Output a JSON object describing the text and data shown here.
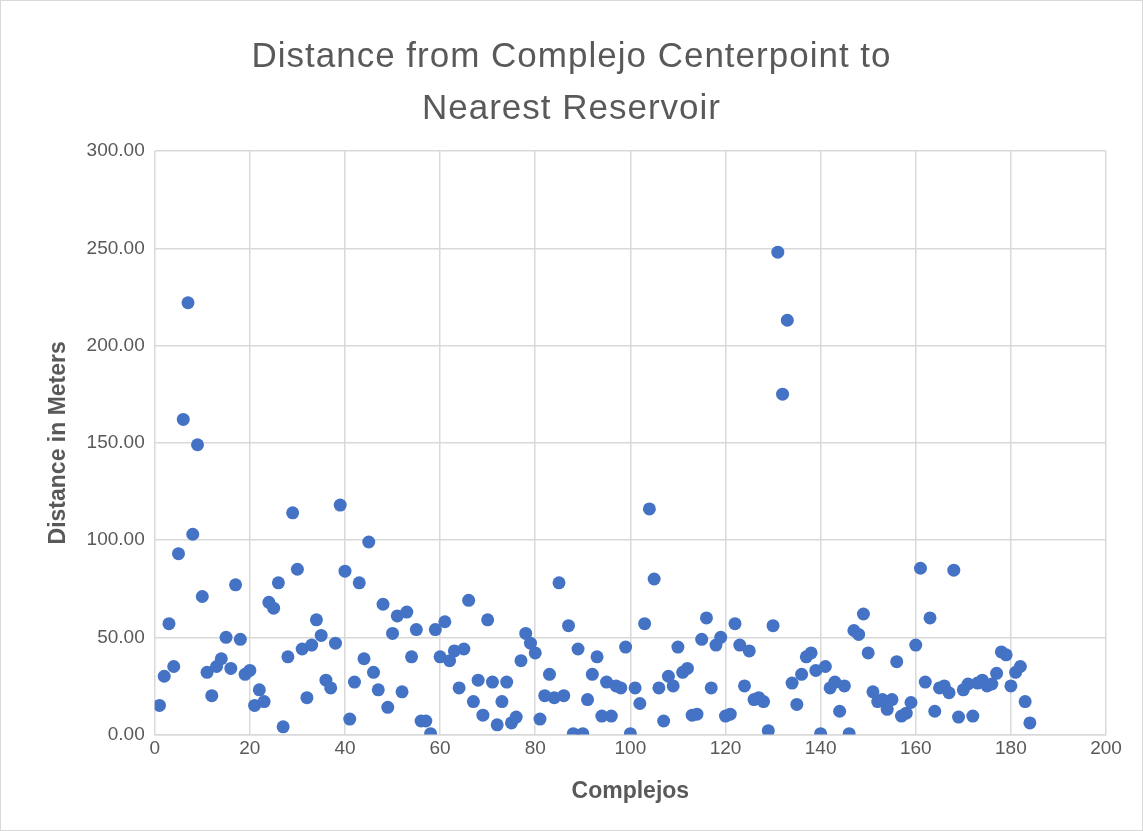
{
  "chart_data": {
    "type": "scatter",
    "title": "Distance from Complejo Centerpoint to Nearest Reservoir",
    "xlabel": "Complejos",
    "ylabel": "Distance in Meters",
    "x": [
      1,
      2,
      3,
      4,
      5,
      6,
      7,
      8,
      9,
      10,
      11,
      12,
      13,
      14,
      15,
      16,
      17,
      18,
      19,
      20,
      21,
      22,
      23,
      24,
      25,
      26,
      27,
      28,
      29,
      30,
      31,
      32,
      33,
      34,
      35,
      36,
      37,
      38,
      39,
      40,
      41,
      42,
      43,
      44,
      45,
      46,
      47,
      48,
      49,
      50,
      51,
      52,
      53,
      54,
      55,
      56,
      57,
      58,
      59,
      60,
      61,
      62,
      63,
      64,
      65,
      66,
      67,
      68,
      69,
      70,
      71,
      72,
      73,
      74,
      75,
      76,
      77,
      78,
      79,
      80,
      81,
      82,
      83,
      84,
      85,
      86,
      87,
      88,
      89,
      90,
      91,
      92,
      93,
      94,
      95,
      96,
      97,
      98,
      99,
      100,
      101,
      102,
      103,
      104,
      105,
      106,
      107,
      108,
      109,
      110,
      111,
      112,
      113,
      114,
      115,
      116,
      117,
      118,
      119,
      120,
      121,
      122,
      123,
      124,
      125,
      126,
      127,
      128,
      129,
      130,
      131,
      132,
      133,
      134,
      135,
      136,
      137,
      138,
      139,
      140,
      141,
      142,
      143,
      144,
      145,
      146,
      147,
      148,
      149,
      150,
      151,
      152,
      153,
      154,
      155,
      156,
      157,
      158,
      159,
      160,
      161,
      162,
      163,
      164,
      165,
      166,
      167,
      168,
      169,
      170,
      171,
      172,
      173,
      174,
      175,
      176,
      177,
      178,
      179,
      180,
      181,
      182,
      183,
      184
    ],
    "series": [
      {
        "color": "#4472c4",
        "values": [
          15,
          30,
          57,
          35,
          93,
          162,
          222,
          103,
          149,
          71,
          32,
          20,
          35,
          39,
          50,
          34,
          77,
          49,
          31,
          33,
          15,
          23,
          17,
          68,
          65,
          78,
          4,
          40,
          114,
          85,
          44,
          19,
          46,
          59,
          51,
          28,
          24,
          47,
          118,
          84,
          8,
          27,
          78,
          39,
          99,
          32,
          23,
          67,
          14,
          52,
          61,
          22,
          63,
          40,
          54,
          7,
          7,
          0.5,
          54,
          40,
          58,
          38,
          43,
          24,
          44,
          69,
          17,
          28,
          10,
          59,
          27,
          5,
          17,
          27,
          6,
          9,
          38,
          52,
          47,
          42,
          8,
          20,
          31,
          19,
          78,
          20,
          56,
          0.5,
          44,
          0.5,
          18,
          31,
          40,
          9.5,
          27,
          9.5,
          25,
          24,
          45,
          0.5,
          24,
          16,
          57,
          116,
          80,
          24,
          7,
          30,
          25,
          45,
          32,
          34,
          10,
          10.5,
          49,
          60,
          24,
          46,
          50,
          9.5,
          10.5,
          57,
          46,
          25,
          43,
          18,
          19,
          17,
          2,
          56,
          248,
          175,
          213,
          26.5,
          15.5,
          31,
          40,
          42,
          33,
          0.5,
          35,
          24,
          27,
          12,
          25,
          0.5,
          53.5,
          51.5,
          62,
          42,
          22,
          17,
          18,
          13,
          18,
          37.5,
          9.5,
          11,
          16.5,
          46,
          85.5,
          27,
          60,
          12,
          24,
          25,
          21.5,
          84.5,
          9,
          23,
          26,
          9.5,
          26.5,
          28,
          25,
          26,
          31.5,
          42.5,
          41,
          25,
          32,
          35,
          17,
          6
        ]
      }
    ],
    "xlim": [
      0,
      200
    ],
    "xticks": [
      0,
      20,
      40,
      60,
      80,
      100,
      120,
      140,
      160,
      180,
      200
    ],
    "ylim": [
      0,
      300
    ],
    "yticks": [
      {
        "value": 0,
        "label": "0.00"
      },
      {
        "value": 50,
        "label": "50.00"
      },
      {
        "value": 100,
        "label": "100.00"
      },
      {
        "value": 150,
        "label": "150.00"
      },
      {
        "value": 200,
        "label": "200.00"
      },
      {
        "value": 250,
        "label": "250.00"
      },
      {
        "value": 300,
        "label": "300.00"
      }
    ],
    "grid": true,
    "legend": false,
    "marker": "circle"
  }
}
